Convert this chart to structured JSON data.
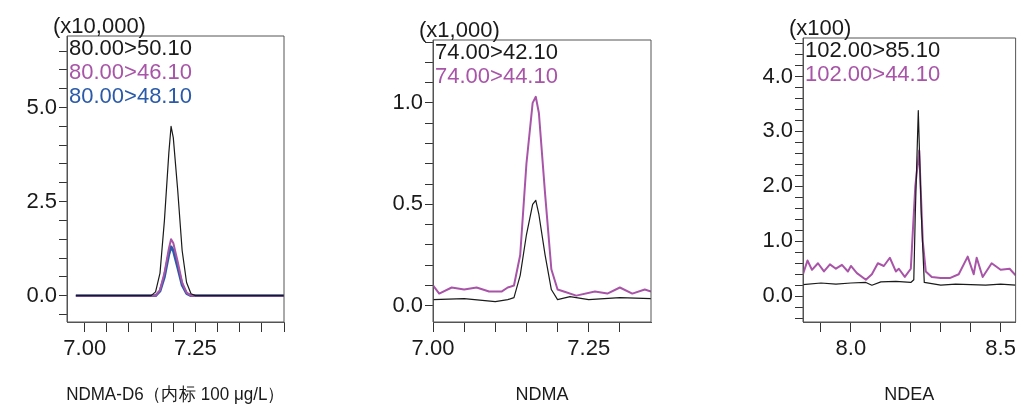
{
  "chart_data": [
    {
      "type": "line",
      "xlabel": "NDMA-D6（内标 100 μg/L）",
      "ylabel": "(x10,000)",
      "legend": "top left",
      "xlim": [
        6.96,
        7.45
      ],
      "xticks": [
        {
          "value": 7.0,
          "label": "7.00"
        },
        {
          "value": 7.05,
          "label": null
        },
        {
          "value": 7.1,
          "label": null
        },
        {
          "value": 7.15,
          "label": null
        },
        {
          "value": 7.2,
          "label": null
        },
        {
          "value": 7.25,
          "label": "7.25"
        },
        {
          "value": 7.3,
          "label": null
        },
        {
          "value": 7.35,
          "label": null
        },
        {
          "value": 7.4,
          "label": null
        },
        {
          "value": 7.45,
          "label": null
        }
      ],
      "ylim": [
        -0.7,
        6.9
      ],
      "yticks": [
        {
          "value": -0.5,
          "label": null
        },
        {
          "value": 0,
          "label": "0.0"
        },
        {
          "value": 0.5,
          "label": null
        },
        {
          "value": 1,
          "label": null
        },
        {
          "value": 1.5,
          "label": null
        },
        {
          "value": 2,
          "label": null
        },
        {
          "value": 2.5,
          "label": "2.5"
        },
        {
          "value": 3,
          "label": null
        },
        {
          "value": 3.5,
          "label": null
        },
        {
          "value": 4,
          "label": null
        },
        {
          "value": 4.5,
          "label": null
        },
        {
          "value": 5,
          "label": "5.0"
        },
        {
          "value": 5.5,
          "label": null
        },
        {
          "value": 6,
          "label": null
        },
        {
          "value": 6.5,
          "label": null
        }
      ],
      "series": [
        {
          "name": "80.00>50.10",
          "color": "#1a1a1a",
          "x": [
            6.98,
            7.15,
            7.16,
            7.17,
            7.18,
            7.19,
            7.195,
            7.2,
            7.21,
            7.22,
            7.23,
            7.24,
            7.25,
            7.45
          ],
          "values": [
            0,
            0,
            0.1,
            0.6,
            2.0,
            3.8,
            4.5,
            4.2,
            2.8,
            1.2,
            0.35,
            0.05,
            0,
            0
          ]
        },
        {
          "name": "80.00>46.10",
          "color": "#a855a8",
          "x": [
            6.98,
            7.16,
            7.17,
            7.18,
            7.19,
            7.195,
            7.2,
            7.21,
            7.22,
            7.23,
            7.24,
            7.45
          ],
          "values": [
            0,
            0,
            0.15,
            0.6,
            1.25,
            1.5,
            1.4,
            0.9,
            0.35,
            0.08,
            0,
            0
          ]
        },
        {
          "name": "80.00>48.10",
          "color": "#2a5aa8",
          "x": [
            6.98,
            7.16,
            7.17,
            7.18,
            7.19,
            7.195,
            7.2,
            7.21,
            7.22,
            7.23,
            7.24,
            7.45
          ],
          "values": [
            0,
            0,
            0.12,
            0.5,
            1.1,
            1.3,
            1.2,
            0.75,
            0.28,
            0.06,
            0,
            0
          ]
        }
      ]
    },
    {
      "type": "line",
      "xlabel": "NDMA",
      "ylabel": "(x1,000)",
      "legend": "top left",
      "xlim": [
        7.0,
        7.35
      ],
      "xticks": [
        {
          "value": 7.0,
          "label": "7.00"
        },
        {
          "value": 7.05,
          "label": null
        },
        {
          "value": 7.1,
          "label": null
        },
        {
          "value": 7.15,
          "label": null
        },
        {
          "value": 7.2,
          "label": null
        },
        {
          "value": 7.25,
          "label": "7.25"
        },
        {
          "value": 7.3,
          "label": null
        }
      ],
      "ylim": [
        -0.08,
        1.31
      ],
      "yticks": [
        {
          "value": 0,
          "label": "0.0"
        },
        {
          "value": 0.1,
          "label": null
        },
        {
          "value": 0.2,
          "label": null
        },
        {
          "value": 0.3,
          "label": null
        },
        {
          "value": 0.4,
          "label": null
        },
        {
          "value": 0.5,
          "label": "0.5"
        },
        {
          "value": 0.6,
          "label": null
        },
        {
          "value": 0.7,
          "label": null
        },
        {
          "value": 0.8,
          "label": null
        },
        {
          "value": 0.9,
          "label": null
        },
        {
          "value": 1.0,
          "label": "1.0"
        },
        {
          "value": 1.1,
          "label": null
        },
        {
          "value": 1.2,
          "label": null
        },
        {
          "value": 1.3,
          "label": null
        }
      ],
      "series": [
        {
          "name": "74.00>42.10",
          "color": "#1a1a1a",
          "x": [
            7.0,
            7.05,
            7.1,
            7.12,
            7.13,
            7.14,
            7.15,
            7.16,
            7.165,
            7.17,
            7.18,
            7.19,
            7.2,
            7.22,
            7.25,
            7.3,
            7.35
          ],
          "values": [
            0.03,
            0.035,
            0.02,
            0.03,
            0.04,
            0.15,
            0.35,
            0.5,
            0.52,
            0.45,
            0.25,
            0.08,
            0.03,
            0.045,
            0.03,
            0.04,
            0.035
          ]
        },
        {
          "name": "74.00>44.10",
          "color": "#a855a8",
          "x": [
            7.0,
            7.01,
            7.03,
            7.05,
            7.07,
            7.09,
            7.11,
            7.12,
            7.13,
            7.14,
            7.15,
            7.16,
            7.165,
            7.17,
            7.18,
            7.19,
            7.2,
            7.21,
            7.23,
            7.26,
            7.28,
            7.3,
            7.32,
            7.34,
            7.35
          ],
          "values": [
            0.1,
            0.06,
            0.09,
            0.08,
            0.09,
            0.07,
            0.07,
            0.09,
            0.1,
            0.25,
            0.7,
            1.0,
            1.03,
            0.95,
            0.55,
            0.18,
            0.08,
            0.07,
            0.05,
            0.07,
            0.06,
            0.09,
            0.06,
            0.08,
            0.07
          ]
        }
      ]
    },
    {
      "type": "line",
      "xlabel": "NDEA",
      "ylabel": "(x100)",
      "legend": "top left",
      "xlim": [
        7.84,
        8.55
      ],
      "xticks": [
        {
          "value": 7.9,
          "label": null
        },
        {
          "value": 8.0,
          "label": "8.0"
        },
        {
          "value": 8.1,
          "label": null
        },
        {
          "value": 8.2,
          "label": null
        },
        {
          "value": 8.3,
          "label": null
        },
        {
          "value": 8.4,
          "label": null
        },
        {
          "value": 8.5,
          "label": "8.5"
        }
      ],
      "ylim": [
        -0.47,
        4.7
      ],
      "yticks": [
        {
          "value": -0.4,
          "label": null
        },
        {
          "value": -0.2,
          "label": null
        },
        {
          "value": 0,
          "label": "0.0"
        },
        {
          "value": 0.2,
          "label": null
        },
        {
          "value": 0.4,
          "label": null
        },
        {
          "value": 0.6,
          "label": null
        },
        {
          "value": 0.8,
          "label": null
        },
        {
          "value": 1.0,
          "label": "1.0"
        },
        {
          "value": 1.2,
          "label": null
        },
        {
          "value": 1.4,
          "label": null
        },
        {
          "value": 1.6,
          "label": null
        },
        {
          "value": 1.8,
          "label": null
        },
        {
          "value": 2.0,
          "label": "2.0"
        },
        {
          "value": 2.2,
          "label": null
        },
        {
          "value": 2.4,
          "label": null
        },
        {
          "value": 2.6,
          "label": null
        },
        {
          "value": 2.8,
          "label": null
        },
        {
          "value": 3.0,
          "label": "3.0"
        },
        {
          "value": 3.2,
          "label": null
        },
        {
          "value": 3.4,
          "label": null
        },
        {
          "value": 3.6,
          "label": null
        },
        {
          "value": 3.8,
          "label": null
        },
        {
          "value": 4.0,
          "label": "4.0"
        },
        {
          "value": 4.2,
          "label": null
        },
        {
          "value": 4.4,
          "label": null
        },
        {
          "value": 4.6,
          "label": null
        }
      ],
      "series": [
        {
          "name": "102.00>85.10",
          "color": "#1a1a1a",
          "x": [
            7.84,
            7.9,
            7.95,
            8.0,
            8.05,
            8.07,
            8.1,
            8.15,
            8.2,
            8.21,
            8.215,
            8.225,
            8.235,
            8.245,
            8.3,
            8.35,
            8.4,
            8.45,
            8.5,
            8.55
          ],
          "values": [
            0.21,
            0.24,
            0.22,
            0.24,
            0.25,
            0.2,
            0.26,
            0.27,
            0.25,
            0.3,
            1.5,
            3.38,
            1.5,
            0.25,
            0.2,
            0.22,
            0.21,
            0.2,
            0.22,
            0.2
          ]
        },
        {
          "name": "102.00>44.10",
          "color": "#a855a8",
          "x": [
            7.84,
            7.855,
            7.87,
            7.89,
            7.91,
            7.93,
            7.95,
            7.97,
            7.99,
            8.0,
            8.02,
            8.05,
            8.07,
            8.09,
            8.11,
            8.13,
            8.15,
            8.16,
            8.18,
            8.2,
            8.215,
            8.228,
            8.24,
            8.25,
            8.27,
            8.3,
            8.33,
            8.36,
            8.39,
            8.41,
            8.42,
            8.44,
            8.47,
            8.5,
            8.53,
            8.55
          ],
          "values": [
            0.4,
            0.65,
            0.48,
            0.6,
            0.45,
            0.58,
            0.5,
            0.57,
            0.45,
            0.55,
            0.42,
            0.3,
            0.4,
            0.6,
            0.55,
            0.7,
            0.45,
            0.5,
            0.35,
            0.5,
            2.0,
            2.65,
            1.0,
            0.45,
            0.35,
            0.33,
            0.33,
            0.4,
            0.72,
            0.4,
            0.7,
            0.35,
            0.6,
            0.48,
            0.5,
            0.38
          ]
        }
      ]
    }
  ]
}
